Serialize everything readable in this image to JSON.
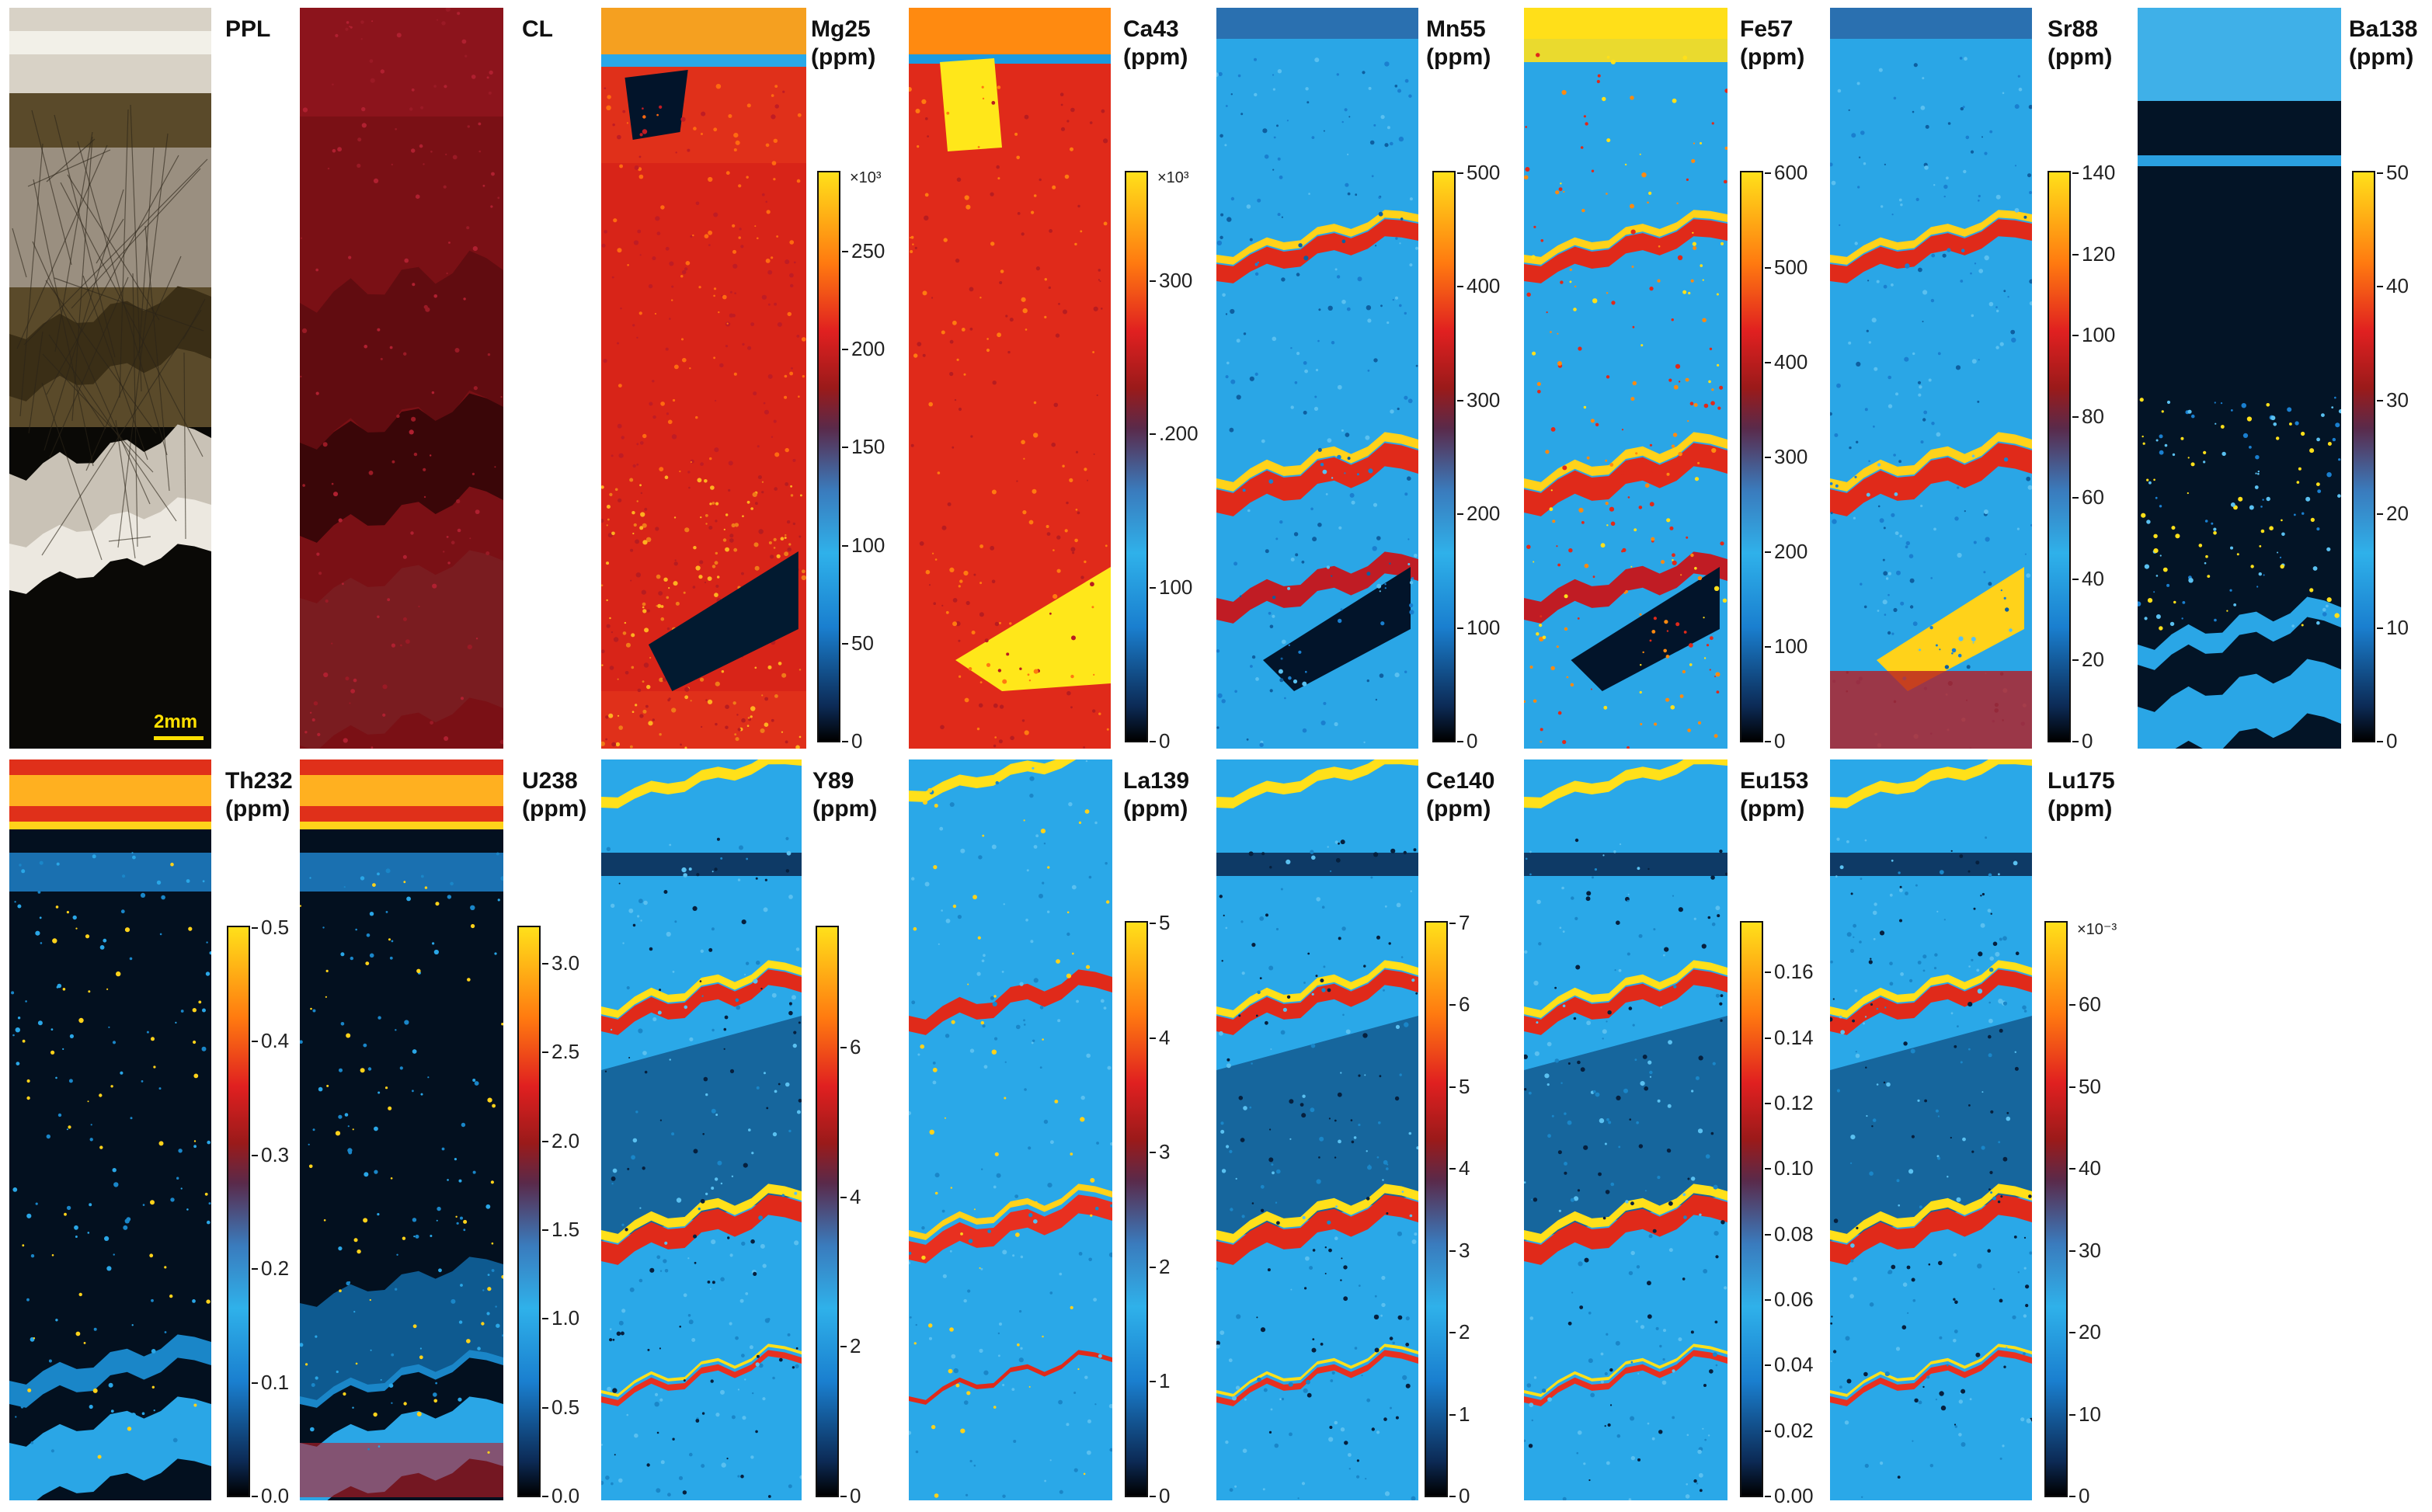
{
  "scale_bar": "2mm",
  "panels": [
    {
      "id": "PPL",
      "label": "PPL",
      "unit": "",
      "kind": "ppl"
    },
    {
      "id": "CL",
      "label": "CL",
      "unit": "",
      "kind": "cl"
    },
    {
      "id": "Mg25",
      "label": "Mg25",
      "unit": "(ppm)",
      "kind": "mg",
      "scale": {
        "mult": "×10³",
        "max": 290,
        "ticks": [
          "0",
          "50",
          "100",
          "150",
          "200",
          "250"
        ]
      }
    },
    {
      "id": "Ca43",
      "label": "Ca43",
      "unit": "(ppm)",
      "kind": "ca",
      "scale": {
        "mult": "×10³",
        "max": 370,
        "ticks": [
          "0",
          "100",
          ".200",
          "300"
        ]
      }
    },
    {
      "id": "Mn55",
      "label": "Mn55",
      "unit": "(ppm)",
      "kind": "mn",
      "scale": {
        "mult": "",
        "max": 500,
        "ticks": [
          "0",
          "100",
          "200",
          "300",
          "400",
          "500"
        ]
      }
    },
    {
      "id": "Fe57",
      "label": "Fe57",
      "unit": "(ppm)",
      "kind": "fe",
      "scale": {
        "mult": "",
        "max": 600,
        "ticks": [
          "0",
          "100",
          "200",
          "300",
          "400",
          "500",
          "600"
        ]
      }
    },
    {
      "id": "Sr88",
      "label": "Sr88",
      "unit": "(ppm)",
      "kind": "sr",
      "scale": {
        "mult": "",
        "max": 140,
        "ticks": [
          "0",
          "20",
          "40",
          "60",
          "80",
          "100",
          "120",
          "140"
        ]
      }
    },
    {
      "id": "Ba138",
      "label": "Ba138",
      "unit": "(ppm)",
      "kind": "ba",
      "scale": {
        "mult": "",
        "max": 50,
        "ticks": [
          "0",
          "10",
          "20",
          "30",
          "40",
          "50"
        ]
      }
    },
    {
      "id": "Th232",
      "label": "Th232",
      "unit": "(ppm)",
      "kind": "th",
      "scale": {
        "mult": "",
        "max": 0.5,
        "ticks": [
          "0.0",
          "0.1",
          "0.2",
          "0.3",
          "0.4",
          "0.5"
        ]
      }
    },
    {
      "id": "U238",
      "label": "U238",
      "unit": "(ppm)",
      "kind": "u",
      "scale": {
        "mult": "",
        "max": 3.2,
        "ticks": [
          "0.0",
          "0.5",
          "1.0",
          "1.5",
          "2.0",
          "2.5",
          "3.0"
        ]
      }
    },
    {
      "id": "Y89",
      "label": "Y89",
      "unit": "(ppm)",
      "kind": "ree",
      "scale": {
        "mult": "",
        "max": 7.6,
        "ticks": [
          "0",
          "2",
          "4",
          "6"
        ]
      }
    },
    {
      "id": "La139",
      "label": "La139",
      "unit": "(ppm)",
      "kind": "la",
      "scale": {
        "mult": "",
        "max": 5,
        "ticks": [
          "0",
          "1",
          "2",
          "3",
          "4",
          "5"
        ]
      }
    },
    {
      "id": "Ce140",
      "label": "Ce140",
      "unit": "(ppm)",
      "kind": "ree",
      "scale": {
        "mult": "",
        "max": 7,
        "ticks": [
          "0",
          "1",
          "2",
          "3",
          "4",
          "5",
          "6",
          "7"
        ]
      }
    },
    {
      "id": "Eu153",
      "label": "Eu153",
      "unit": "(ppm)",
      "kind": "ree",
      "scale": {
        "mult": "",
        "max": 0.175,
        "ticks": [
          "0.00",
          "0.02",
          "0.04",
          "0.06",
          "0.08",
          "0.10",
          "0.12",
          "0.14",
          "0.16"
        ]
      }
    },
    {
      "id": "Lu175",
      "label": "Lu175",
      "unit": "(ppm)",
      "kind": "ree",
      "scale": {
        "mult": "×10⁻³",
        "max": 70,
        "ticks": [
          "0",
          "10",
          "20",
          "30",
          "40",
          "50",
          "60"
        ]
      }
    }
  ]
}
